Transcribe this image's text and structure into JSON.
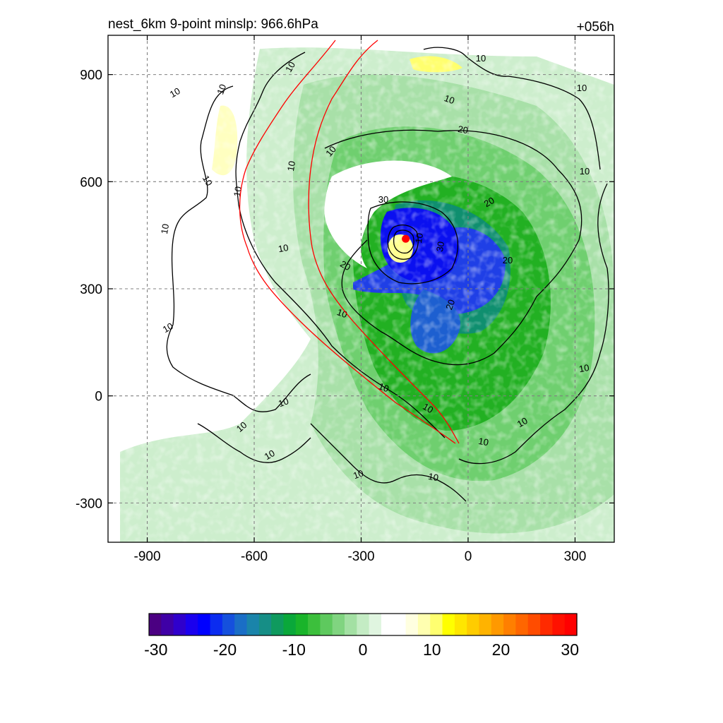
{
  "chart_data": {
    "type": "heatmap",
    "title_left": "nest_6km  9-point minslp: 966.6hPa",
    "title_right": "+056h",
    "xlim": [
      -1010,
      410
    ],
    "ylim": [
      -410,
      1010
    ],
    "x_ticks": [
      -900,
      -600,
      -300,
      0,
      300
    ],
    "y_ticks": [
      -300,
      0,
      300,
      600,
      900
    ],
    "grid": "dashed",
    "storm_center": {
      "x": -175,
      "y": 440
    },
    "contour_labels": [
      "10",
      "20",
      "30"
    ],
    "colorbar": {
      "ticks": [
        -30,
        -20,
        -10,
        0,
        10,
        20,
        30
      ],
      "range": [
        -31,
        31
      ],
      "colors": [
        "#4b0082",
        "#3f00a6",
        "#2f00cc",
        "#1a00ee",
        "#0000ff",
        "#0b2cf0",
        "#1550dd",
        "#1a6ec6",
        "#1a84aa",
        "#168e86",
        "#0f9a5e",
        "#0aa83a",
        "#19b42a",
        "#3cbf3c",
        "#5ec95e",
        "#80d480",
        "#a3e0a3",
        "#c4ecc4",
        "#e0f5e0",
        "#ffffff",
        "#ffffff",
        "#ffffe0",
        "#ffffb0",
        "#ffff70",
        "#ffff00",
        "#ffe600",
        "#ffcc00",
        "#ffb300",
        "#ff9900",
        "#ff7f00",
        "#ff6600",
        "#ff4c00",
        "#ff2a00",
        "#ff1100",
        "#ff0000"
      ]
    }
  }
}
